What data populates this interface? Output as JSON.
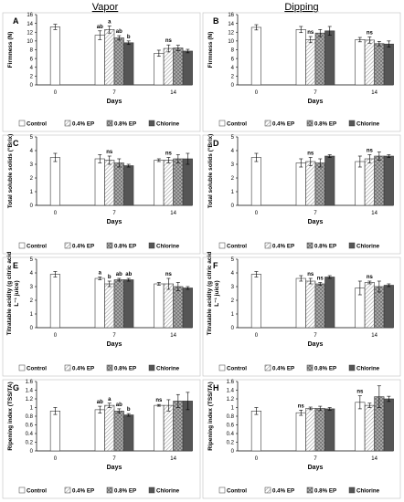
{
  "figure": {
    "headers": {
      "left": "Vapor",
      "right": "Dipping"
    },
    "days_label": "Days",
    "x_ticks": [
      "0",
      "7",
      "14"
    ],
    "legend": [
      "Control",
      "0.4% EP",
      "0.8% EP",
      "Chlorine"
    ]
  },
  "colors": {
    "control": "#ffffff",
    "ep04": "#d3d3d3",
    "ep08": "#8c8c8c",
    "chlorine": "#555555",
    "axis": "#000000"
  },
  "chart_data": [
    {
      "type": "bar",
      "panel": "A",
      "ylabel": "Firmness (N)",
      "ylim": [
        0,
        16
      ],
      "yticks": [
        0,
        2,
        4,
        6,
        8,
        10,
        12,
        14,
        16
      ],
      "categories": [
        "0",
        "7",
        "14"
      ],
      "series": [
        {
          "name": "Control",
          "values": [
            13.2,
            11.3,
            7.2
          ],
          "errors": [
            0.6,
            1.0,
            0.7
          ]
        },
        {
          "name": "0.4% EP",
          "values": [
            null,
            12.6,
            8.3
          ],
          "errors": [
            null,
            0.8,
            0.8
          ]
        },
        {
          "name": "0.8% EP",
          "values": [
            null,
            10.7,
            8.4
          ],
          "errors": [
            null,
            0.5,
            0.6
          ]
        },
        {
          "name": "Chlorine",
          "values": [
            null,
            9.6,
            7.7
          ],
          "errors": [
            null,
            0.4,
            0.4
          ]
        }
      ],
      "annotations": [
        {
          "day": "7",
          "series": 0,
          "text": "ab"
        },
        {
          "day": "7",
          "series": 1,
          "text": "a"
        },
        {
          "day": "7",
          "series": 2,
          "text": "ab"
        },
        {
          "day": "7",
          "series": 3,
          "text": "b"
        },
        {
          "day": "14",
          "series": 1,
          "text": "ns"
        }
      ]
    },
    {
      "type": "bar",
      "panel": "B",
      "ylabel": "Firmness (N)",
      "ylim": [
        0,
        16
      ],
      "yticks": [
        0,
        2,
        4,
        6,
        8,
        10,
        12,
        14,
        16
      ],
      "categories": [
        "0",
        "7",
        "14"
      ],
      "series": [
        {
          "name": "Control",
          "values": [
            13.1,
            12.6,
            10.3
          ],
          "errors": [
            0.6,
            0.7,
            0.5
          ]
        },
        {
          "name": "0.4% EP",
          "values": [
            null,
            10.3,
            10.2
          ],
          "errors": [
            null,
            0.7,
            0.7
          ]
        },
        {
          "name": "0.8% EP",
          "values": [
            null,
            11.8,
            9.4
          ],
          "errors": [
            null,
            0.8,
            0.5
          ]
        },
        {
          "name": "Chlorine",
          "values": [
            null,
            12.3,
            9.3
          ],
          "errors": [
            null,
            1.0,
            0.7
          ]
        }
      ],
      "annotations": [
        {
          "day": "7",
          "series": 1,
          "text": "ns"
        },
        {
          "day": "14",
          "series": 1,
          "text": "ns"
        }
      ]
    },
    {
      "type": "bar",
      "panel": "C",
      "ylabel": "Total soluble solids (°Brix)",
      "ylim": [
        0,
        5
      ],
      "yticks": [
        0,
        1,
        2,
        3,
        4,
        5
      ],
      "categories": [
        "0",
        "7",
        "14"
      ],
      "series": [
        {
          "name": "Control",
          "values": [
            3.5,
            3.4,
            3.3
          ],
          "errors": [
            0.3,
            0.3,
            0.1
          ]
        },
        {
          "name": "0.4% EP",
          "values": [
            null,
            3.3,
            3.3
          ],
          "errors": [
            null,
            0.3,
            0.2
          ]
        },
        {
          "name": "0.8% EP",
          "values": [
            null,
            3.1,
            3.4
          ],
          "errors": [
            null,
            0.3,
            0.3
          ]
        },
        {
          "name": "Chlorine",
          "values": [
            null,
            2.9,
            3.4
          ],
          "errors": [
            null,
            0.1,
            0.4
          ]
        }
      ],
      "annotations": [
        {
          "day": "7",
          "series": 1,
          "text": "ns"
        },
        {
          "day": "14",
          "series": 1,
          "text": "ns"
        }
      ]
    },
    {
      "type": "bar",
      "panel": "D",
      "ylabel": "Total soluble solids (°Brix)",
      "ylim": [
        0,
        5
      ],
      "yticks": [
        0,
        1,
        2,
        3,
        4,
        5
      ],
      "categories": [
        "0",
        "7",
        "14"
      ],
      "series": [
        {
          "name": "Control",
          "values": [
            3.5,
            3.1,
            3.2
          ],
          "errors": [
            0.3,
            0.3,
            0.4
          ]
        },
        {
          "name": "0.4% EP",
          "values": [
            null,
            3.2,
            3.4
          ],
          "errors": [
            null,
            0.3,
            0.3
          ]
        },
        {
          "name": "0.8% EP",
          "values": [
            null,
            3.1,
            3.6
          ],
          "errors": [
            null,
            0.3,
            0.3
          ]
        },
        {
          "name": "Chlorine",
          "values": [
            null,
            3.6,
            3.6
          ],
          "errors": [
            null,
            0.1,
            0.1
          ]
        }
      ],
      "annotations": [
        {
          "day": "7",
          "series": 1,
          "text": "ns"
        },
        {
          "day": "14",
          "series": 1,
          "text": "ns"
        }
      ]
    },
    {
      "type": "bar",
      "panel": "E",
      "ylabel": "Titratable acidity (g citric acid L⁻¹ juice)",
      "ylim": [
        0,
        5
      ],
      "yticks": [
        0,
        1,
        2,
        3,
        4,
        5
      ],
      "categories": [
        "0",
        "7",
        "14"
      ],
      "series": [
        {
          "name": "Control",
          "values": [
            3.9,
            3.6,
            3.2
          ],
          "errors": [
            0.2,
            0.1,
            0.1
          ]
        },
        {
          "name": "0.4% EP",
          "values": [
            null,
            3.2,
            3.2
          ],
          "errors": [
            null,
            0.2,
            0.4
          ]
        },
        {
          "name": "0.8% EP",
          "values": [
            null,
            3.5,
            3.0
          ],
          "errors": [
            null,
            0.1,
            0.3
          ]
        },
        {
          "name": "Chlorine",
          "values": [
            null,
            3.5,
            2.9
          ],
          "errors": [
            null,
            0.1,
            0.1
          ]
        }
      ],
      "annotations": [
        {
          "day": "7",
          "series": 0,
          "text": "a"
        },
        {
          "day": "7",
          "series": 1,
          "text": "b"
        },
        {
          "day": "7",
          "series": 2,
          "text": "ab"
        },
        {
          "day": "7",
          "series": 3,
          "text": "ab"
        },
        {
          "day": "14",
          "series": 1,
          "text": "ns"
        }
      ]
    },
    {
      "type": "bar",
      "panel": "F",
      "ylabel": "Titratable acidity (g citric acid L⁻¹ juice)",
      "ylim": [
        0,
        5
      ],
      "yticks": [
        0,
        1,
        2,
        3,
        4,
        5
      ],
      "categories": [
        "0",
        "7",
        "14"
      ],
      "series": [
        {
          "name": "Control",
          "values": [
            3.9,
            3.6,
            2.9
          ],
          "errors": [
            0.2,
            0.2,
            0.5
          ]
        },
        {
          "name": "0.4% EP",
          "values": [
            null,
            3.4,
            3.3
          ],
          "errors": [
            null,
            0.2,
            0.1
          ]
        },
        {
          "name": "0.8% EP",
          "values": [
            null,
            3.2,
            3.0
          ],
          "errors": [
            null,
            0.1,
            0.4
          ]
        },
        {
          "name": "Chlorine",
          "values": [
            null,
            3.7,
            3.1
          ],
          "errors": [
            null,
            0.1,
            0.1
          ]
        }
      ],
      "annotations": [
        {
          "day": "7",
          "series": 1,
          "text": "ns"
        },
        {
          "day": "7",
          "series": 2,
          "text": "ns"
        },
        {
          "day": "14",
          "series": 1,
          "text": "ns"
        }
      ]
    },
    {
      "type": "bar",
      "panel": "G",
      "ylabel": "Ripening index (TSS/TA)",
      "ylim": [
        0,
        1.6
      ],
      "yticks": [
        0,
        0.2,
        0.4,
        0.6,
        0.8,
        1,
        1.2,
        1.4,
        1.6
      ],
      "categories": [
        "0",
        "7",
        "14"
      ],
      "series": [
        {
          "name": "Control",
          "values": [
            0.92,
            0.95,
            1.05
          ],
          "errors": [
            0.08,
            0.08,
            0.02
          ]
        },
        {
          "name": "0.4% EP",
          "values": [
            null,
            1.05,
            1.05
          ],
          "errors": [
            null,
            0.05,
            0.13
          ]
        },
        {
          "name": "0.8% EP",
          "values": [
            null,
            0.92,
            1.15
          ],
          "errors": [
            null,
            0.05,
            0.15
          ]
        },
        {
          "name": "Chlorine",
          "values": [
            null,
            0.83,
            1.15
          ],
          "errors": [
            null,
            0.03,
            0.2
          ]
        }
      ],
      "annotations": [
        {
          "day": "7",
          "series": 0,
          "text": "ab"
        },
        {
          "day": "7",
          "series": 1,
          "text": "a"
        },
        {
          "day": "7",
          "series": 2,
          "text": "ab"
        },
        {
          "day": "7",
          "series": 3,
          "text": "b"
        },
        {
          "day": "14",
          "series": 0,
          "text": "ns"
        }
      ]
    },
    {
      "type": "bar",
      "panel": "H",
      "ylabel": "Ripening index (TSS/TA)",
      "ylim": [
        0,
        1.6
      ],
      "yticks": [
        0,
        0.2,
        0.4,
        0.6,
        0.8,
        1,
        1.2,
        1.4,
        1.6
      ],
      "categories": [
        "0",
        "7",
        "14"
      ],
      "series": [
        {
          "name": "Control",
          "values": [
            0.92,
            0.88,
            1.12
          ],
          "errors": [
            0.08,
            0.06,
            0.15
          ]
        },
        {
          "name": "0.4% EP",
          "values": [
            null,
            0.98,
            1.05
          ],
          "errors": [
            null,
            0.03,
            0.05
          ]
        },
        {
          "name": "0.8% EP",
          "values": [
            null,
            0.98,
            1.25
          ],
          "errors": [
            null,
            0.05,
            0.25
          ]
        },
        {
          "name": "Chlorine",
          "values": [
            null,
            0.97,
            1.2
          ],
          "errors": [
            null,
            0.03,
            0.06
          ]
        }
      ],
      "annotations": [
        {
          "day": "7",
          "series": 0,
          "text": "ns"
        },
        {
          "day": "14",
          "series": 0,
          "text": "ns"
        }
      ]
    }
  ]
}
